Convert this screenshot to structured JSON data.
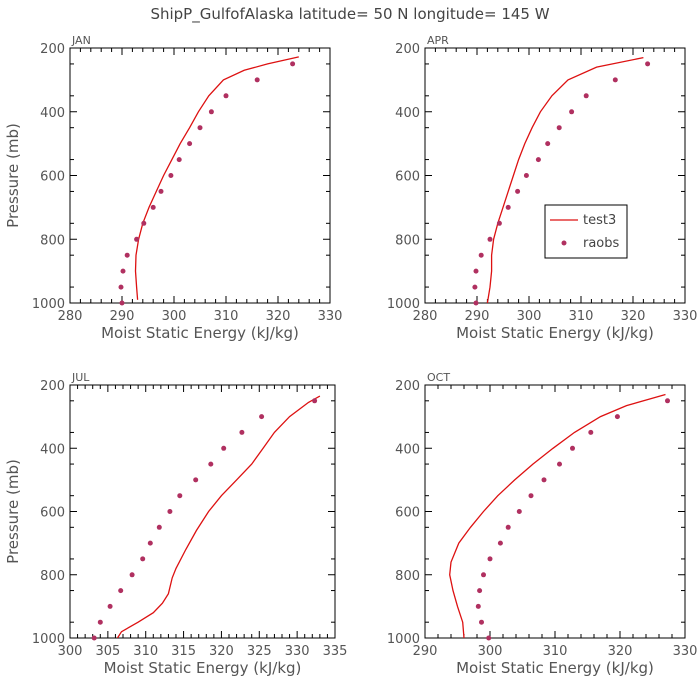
{
  "figure_title": "ShipP_GulfofAlaska   latitude= 50 N longitude= 145 W",
  "colors": {
    "line": "#dd1111",
    "marker": "#b03060",
    "axis": "#000000",
    "text": "#555555"
  },
  "legend": {
    "line_label": "test3",
    "marker_label": "raobs",
    "placement": "center-right of APR panel"
  },
  "chart_data": [
    {
      "type": "line+scatter",
      "title": "JAN",
      "xlabel": "Moist Static Energy (kJ/kg)",
      "ylabel": "Pressure (mb)",
      "xlim": [
        280,
        330
      ],
      "xticks": [
        280,
        290,
        300,
        310,
        320,
        330
      ],
      "ylim": [
        1000,
        200
      ],
      "yticks": [
        200,
        400,
        600,
        800,
        1000
      ],
      "series": [
        {
          "name": "test3",
          "kind": "line",
          "points": [
            [
              293.0,
              990
            ],
            [
              292.8,
              950
            ],
            [
              292.6,
              900
            ],
            [
              292.7,
              850
            ],
            [
              293.2,
              800
            ],
            [
              294.0,
              750
            ],
            [
              295.2,
              700
            ],
            [
              296.6,
              650
            ],
            [
              298.0,
              600
            ],
            [
              299.6,
              550
            ],
            [
              301.2,
              500
            ],
            [
              303.0,
              450
            ],
            [
              304.7,
              400
            ],
            [
              306.7,
              350
            ],
            [
              309.5,
              300
            ],
            [
              313.5,
              270
            ],
            [
              318.0,
              250
            ],
            [
              324.0,
              228
            ]
          ]
        },
        {
          "name": "raobs",
          "kind": "scatter",
          "points": [
            [
              290.0,
              1000
            ],
            [
              289.8,
              950
            ],
            [
              290.2,
              900
            ],
            [
              291.0,
              850
            ],
            [
              292.8,
              800
            ],
            [
              294.2,
              750
            ],
            [
              296.0,
              700
            ],
            [
              297.5,
              650
            ],
            [
              299.4,
              600
            ],
            [
              301.0,
              550
            ],
            [
              303.0,
              500
            ],
            [
              305.0,
              450
            ],
            [
              307.2,
              400
            ],
            [
              310.0,
              350
            ],
            [
              316.0,
              300
            ],
            [
              322.8,
              250
            ]
          ]
        }
      ]
    },
    {
      "type": "line+scatter",
      "title": "APR",
      "xlabel": "Moist Static Energy (kJ/kg)",
      "ylabel": "",
      "xlim": [
        280,
        330
      ],
      "xticks": [
        280,
        290,
        300,
        310,
        320,
        330
      ],
      "ylim": [
        1000,
        200
      ],
      "yticks": [
        200,
        400,
        600,
        800,
        1000
      ],
      "series": [
        {
          "name": "test3",
          "kind": "line",
          "points": [
            [
              292.0,
              1000
            ],
            [
              292.5,
              950
            ],
            [
              292.8,
              900
            ],
            [
              292.8,
              850
            ],
            [
              293.2,
              800
            ],
            [
              294.0,
              750
            ],
            [
              295.0,
              700
            ],
            [
              296.0,
              650
            ],
            [
              297.0,
              600
            ],
            [
              298.0,
              550
            ],
            [
              299.2,
              500
            ],
            [
              300.6,
              450
            ],
            [
              302.2,
              400
            ],
            [
              304.4,
              350
            ],
            [
              307.5,
              300
            ],
            [
              313.0,
              260
            ],
            [
              322.0,
              230
            ]
          ]
        },
        {
          "name": "raobs",
          "kind": "scatter",
          "points": [
            [
              289.8,
              1000
            ],
            [
              289.6,
              950
            ],
            [
              289.8,
              900
            ],
            [
              290.8,
              850
            ],
            [
              292.5,
              800
            ],
            [
              294.3,
              750
            ],
            [
              296.0,
              700
            ],
            [
              297.8,
              650
            ],
            [
              299.5,
              600
            ],
            [
              301.8,
              550
            ],
            [
              303.6,
              500
            ],
            [
              305.8,
              450
            ],
            [
              308.2,
              400
            ],
            [
              311.0,
              350
            ],
            [
              316.6,
              300
            ],
            [
              322.8,
              250
            ]
          ]
        }
      ]
    },
    {
      "type": "line+scatter",
      "title": "JUL",
      "xlabel": "Moist Static Energy (kJ/kg)",
      "ylabel": "Pressure (mb)",
      "xlim": [
        300,
        335
      ],
      "xticks": [
        300,
        305,
        310,
        315,
        320,
        325,
        330,
        335
      ],
      "ylim": [
        1000,
        200
      ],
      "yticks": [
        200,
        400,
        600,
        800,
        1000
      ],
      "series": [
        {
          "name": "test3",
          "kind": "line",
          "points": [
            [
              306.0,
              1010
            ],
            [
              306.8,
              980
            ],
            [
              309.0,
              950
            ],
            [
              311.0,
              920
            ],
            [
              312.2,
              890
            ],
            [
              313.0,
              860
            ],
            [
              313.5,
              810
            ],
            [
              314.0,
              780
            ],
            [
              315.3,
              720
            ],
            [
              316.7,
              660
            ],
            [
              318.3,
              600
            ],
            [
              320.0,
              550
            ],
            [
              322.0,
              500
            ],
            [
              324.0,
              450
            ],
            [
              325.5,
              400
            ],
            [
              327.0,
              350
            ],
            [
              329.0,
              300
            ],
            [
              331.5,
              255
            ],
            [
              333.0,
              235
            ]
          ]
        },
        {
          "name": "raobs",
          "kind": "scatter",
          "points": [
            [
              303.2,
              1000
            ],
            [
              304.0,
              950
            ],
            [
              305.3,
              900
            ],
            [
              306.7,
              850
            ],
            [
              308.2,
              800
            ],
            [
              309.6,
              750
            ],
            [
              310.6,
              700
            ],
            [
              311.8,
              650
            ],
            [
              313.2,
              600
            ],
            [
              314.5,
              550
            ],
            [
              316.6,
              500
            ],
            [
              318.6,
              450
            ],
            [
              320.3,
              400
            ],
            [
              322.7,
              350
            ],
            [
              325.3,
              300
            ],
            [
              332.3,
              250
            ]
          ]
        }
      ]
    },
    {
      "type": "line+scatter",
      "title": "OCT",
      "xlabel": "Moist Static Energy (kJ/kg)",
      "ylabel": "",
      "xlim": [
        290,
        330
      ],
      "xticks": [
        290,
        300,
        310,
        320,
        330
      ],
      "ylim": [
        1000,
        200
      ],
      "yticks": [
        200,
        400,
        600,
        800,
        1000
      ],
      "series": [
        {
          "name": "test3",
          "kind": "line",
          "points": [
            [
              296.0,
              1000
            ],
            [
              295.8,
              950
            ],
            [
              295.0,
              900
            ],
            [
              294.3,
              850
            ],
            [
              293.8,
              800
            ],
            [
              294.0,
              760
            ],
            [
              295.2,
              700
            ],
            [
              297.0,
              650
            ],
            [
              299.0,
              600
            ],
            [
              301.2,
              550
            ],
            [
              303.8,
              500
            ],
            [
              306.6,
              450
            ],
            [
              309.7,
              400
            ],
            [
              313.0,
              350
            ],
            [
              317.0,
              300
            ],
            [
              321.0,
              265
            ],
            [
              327.0,
              230
            ]
          ]
        },
        {
          "name": "raobs",
          "kind": "scatter",
          "points": [
            [
              299.8,
              1000
            ],
            [
              298.7,
              950
            ],
            [
              298.2,
              900
            ],
            [
              298.4,
              850
            ],
            [
              299.0,
              800
            ],
            [
              300.0,
              750
            ],
            [
              301.6,
              700
            ],
            [
              302.8,
              650
            ],
            [
              304.5,
              600
            ],
            [
              306.3,
              550
            ],
            [
              308.3,
              500
            ],
            [
              310.7,
              450
            ],
            [
              312.7,
              400
            ],
            [
              315.5,
              350
            ],
            [
              319.6,
              300
            ],
            [
              327.3,
              250
            ]
          ]
        }
      ]
    }
  ]
}
